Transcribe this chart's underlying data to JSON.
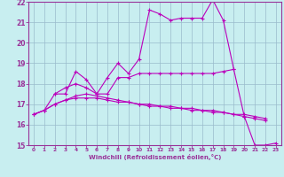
{
  "xlabel": "Windchill (Refroidissement éolien,°C)",
  "x": [
    0,
    1,
    2,
    3,
    4,
    5,
    6,
    7,
    8,
    9,
    10,
    11,
    12,
    13,
    14,
    15,
    16,
    17,
    18,
    19,
    20,
    21,
    22,
    23
  ],
  "line1": [
    16.5,
    16.7,
    17.5,
    17.5,
    18.6,
    18.2,
    17.5,
    18.3,
    19.0,
    18.5,
    19.2,
    21.6,
    21.4,
    21.1,
    21.2,
    21.2,
    21.2,
    22.1,
    21.1,
    18.7,
    16.4,
    15.0,
    15.0,
    15.1
  ],
  "line2": [
    null,
    null,
    17.5,
    17.8,
    18.0,
    17.8,
    17.5,
    17.5,
    18.3,
    18.3,
    18.5,
    18.5,
    18.5,
    18.5,
    18.5,
    18.5,
    18.5,
    18.5,
    18.6,
    18.7,
    null,
    null,
    null,
    null
  ],
  "line3": [
    16.5,
    16.7,
    17.0,
    17.2,
    17.4,
    17.5,
    17.4,
    17.3,
    17.2,
    17.1,
    17.0,
    16.9,
    16.9,
    16.8,
    16.8,
    16.7,
    16.7,
    16.6,
    16.6,
    16.5,
    16.4,
    16.3,
    16.2,
    null
  ],
  "line4": [
    16.5,
    16.7,
    17.0,
    17.2,
    17.3,
    17.3,
    17.3,
    17.2,
    17.1,
    17.1,
    17.0,
    17.0,
    16.9,
    16.9,
    16.8,
    16.8,
    16.7,
    16.7,
    16.6,
    16.5,
    16.5,
    16.4,
    16.3,
    null
  ],
  "ylim": [
    15,
    22
  ],
  "xlim": [
    -0.5,
    23.5
  ],
  "yticks": [
    15,
    16,
    17,
    18,
    19,
    20,
    21,
    22
  ],
  "xticks": [
    0,
    1,
    2,
    3,
    4,
    5,
    6,
    7,
    8,
    9,
    10,
    11,
    12,
    13,
    14,
    15,
    16,
    17,
    18,
    19,
    20,
    21,
    22,
    23
  ],
  "line_color": "#bb00bb",
  "bg_color": "#c8eef0",
  "grid_color": "#99bbcc",
  "spine_color": "#993399",
  "tick_color": "#993399",
  "label_color": "#993399"
}
